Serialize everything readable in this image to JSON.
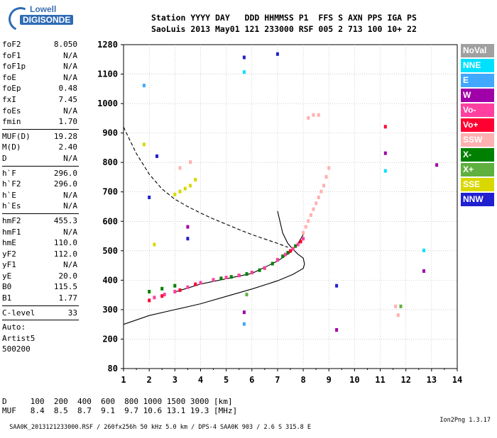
{
  "logo": {
    "line1": "Lowell",
    "line2": "DIGISONDE"
  },
  "header": {
    "line1": "Station YYYY DAY   DDD HHMMSS P1  FFS S AXN PPS IGA PS",
    "line2": "SaoLuis 2013 May01 121 233000 RSF 005 2 713 100 10+ 22"
  },
  "params1": [
    {
      "label": "foF2",
      "value": "8.050"
    },
    {
      "label": "foF1",
      "value": "N/A"
    },
    {
      "label": "foF1p",
      "value": "N/A"
    },
    {
      "label": "foE",
      "value": "N/A"
    },
    {
      "label": "foEp",
      "value": "0.48"
    },
    {
      "label": "fxI",
      "value": "7.45"
    },
    {
      "label": "foEs",
      "value": "N/A"
    },
    {
      "label": "fmin",
      "value": "1.70"
    }
  ],
  "params2": [
    {
      "label": "MUF(D)",
      "value": "19.28"
    },
    {
      "label": "M(D)",
      "value": "2.40"
    },
    {
      "label": "D",
      "value": "N/A"
    }
  ],
  "params3": [
    {
      "label": "h`F",
      "value": "296.0"
    },
    {
      "label": "h`F2",
      "value": "296.0"
    },
    {
      "label": "h`E",
      "value": "N/A"
    },
    {
      "label": "h`Es",
      "value": "N/A"
    }
  ],
  "params4": [
    {
      "label": "hmF2",
      "value": "455.3"
    },
    {
      "label": "hmF1",
      "value": "N/A"
    },
    {
      "label": "hmE",
      "value": "110.0"
    },
    {
      "label": "yF2",
      "value": "112.0"
    },
    {
      "label": "yF1",
      "value": "N/A"
    },
    {
      "label": "yE",
      "value": "20.0"
    },
    {
      "label": "B0",
      "value": "115.5"
    },
    {
      "label": "B1",
      "value": "1.77"
    }
  ],
  "clevel": {
    "label": "C-level",
    "value": "33"
  },
  "auto": {
    "line1": "Auto:",
    "line2": "Artist5",
    "line3": "500200"
  },
  "legend": [
    {
      "label": "NoVal",
      "color": "#a0a0a0"
    },
    {
      "label": "NNE",
      "color": "#00e0ff"
    },
    {
      "label": "E",
      "color": "#40a8ff"
    },
    {
      "label": "W",
      "color": "#a000a8"
    },
    {
      "label": "Vo-",
      "color": "#ff40a0"
    },
    {
      "label": "Vo+",
      "color": "#ff0030"
    },
    {
      "label": "SSW",
      "color": "#ffb0b0"
    },
    {
      "label": "X-",
      "color": "#008000"
    },
    {
      "label": "X+",
      "color": "#60b040"
    },
    {
      "label": "SSE",
      "color": "#d8d800"
    },
    {
      "label": "NNW",
      "color": "#2020d0"
    }
  ],
  "bottom": {
    "d_row": "D     100  200  400  600  800 1000 1500 3000 [km]",
    "muf_row": "MUF   8.4  8.5  8.7  9.1  9.7 10.6 13.1 19.3 [MHz]",
    "footer_left": "SAA0K_2013121233000.RSF / 260fx256h 50 kHz 5.0 km / DPS-4 SAA0K 903 / 2.6 S 315.8 E",
    "footer_right": "Ion2Png 1.3.17"
  },
  "chart_data": {
    "type": "scatter",
    "xlabel": "",
    "ylabel": "",
    "xlim": [
      1,
      14
    ],
    "ylim": [
      80,
      1280
    ],
    "x_ticks": [
      1,
      2,
      3,
      4,
      5,
      6,
      7,
      8,
      9,
      10,
      11,
      12,
      13,
      14
    ],
    "y_ticks": [
      80,
      200,
      300,
      400,
      500,
      600,
      700,
      800,
      900,
      1000,
      1100,
      1280
    ],
    "grid": "dashed",
    "series": [
      {
        "name": "X-",
        "color": "#008000",
        "points": [
          [
            5.8,
            420
          ],
          [
            6.0,
            425
          ],
          [
            6.3,
            433
          ],
          [
            6.5,
            440
          ],
          [
            6.8,
            455
          ],
          [
            7.0,
            468
          ],
          [
            7.2,
            480
          ],
          [
            7.4,
            492
          ],
          [
            7.6,
            505
          ],
          [
            7.7,
            515
          ],
          [
            5.2,
            410
          ],
          [
            5.5,
            415
          ],
          [
            4.8,
            405
          ],
          [
            4.5,
            400
          ],
          [
            2.0,
            360
          ],
          [
            2.5,
            370
          ],
          [
            3.0,
            380
          ]
        ]
      },
      {
        "name": "Vo-",
        "color": "#ff40a0",
        "points": [
          [
            2.2,
            340
          ],
          [
            2.6,
            350
          ],
          [
            3.0,
            360
          ],
          [
            3.5,
            375
          ],
          [
            4.0,
            390
          ],
          [
            4.5,
            400
          ],
          [
            5.0,
            408
          ],
          [
            5.5,
            415
          ],
          [
            6.0,
            425
          ],
          [
            6.5,
            440
          ],
          [
            7.0,
            468
          ],
          [
            7.3,
            486
          ],
          [
            7.6,
            505
          ],
          [
            7.8,
            520
          ],
          [
            8.0,
            540
          ]
        ]
      },
      {
        "name": "Vo+",
        "color": "#ff0030",
        "points": [
          [
            2.0,
            330
          ],
          [
            2.5,
            345
          ],
          [
            3.2,
            365
          ],
          [
            3.8,
            385
          ],
          [
            7.5,
            498
          ],
          [
            7.9,
            530
          ],
          [
            11.2,
            920
          ]
        ]
      },
      {
        "name": "SSW",
        "color": "#ffb0b0",
        "points": [
          [
            8.0,
            560
          ],
          [
            8.1,
            580
          ],
          [
            8.2,
            600
          ],
          [
            8.3,
            620
          ],
          [
            8.4,
            640
          ],
          [
            8.5,
            660
          ],
          [
            8.6,
            680
          ],
          [
            8.7,
            700
          ],
          [
            8.8,
            720
          ],
          [
            8.9,
            750
          ],
          [
            9.0,
            780
          ],
          [
            8.2,
            950
          ],
          [
            8.4,
            960
          ],
          [
            8.6,
            960
          ],
          [
            3.2,
            780
          ],
          [
            3.6,
            800
          ],
          [
            11.6,
            310
          ],
          [
            11.7,
            280
          ]
        ]
      },
      {
        "name": "SSE",
        "color": "#d8d800",
        "points": [
          [
            3.0,
            690
          ],
          [
            3.2,
            700
          ],
          [
            3.4,
            710
          ],
          [
            3.6,
            720
          ],
          [
            3.8,
            740
          ],
          [
            2.2,
            520
          ],
          [
            1.8,
            860
          ]
        ]
      },
      {
        "name": "W",
        "color": "#a000a8",
        "points": [
          [
            3.5,
            580
          ],
          [
            5.7,
            290
          ],
          [
            9.3,
            230
          ],
          [
            12.7,
            430
          ],
          [
            13.2,
            790
          ],
          [
            11.2,
            830
          ]
        ]
      },
      {
        "name": "NNW",
        "color": "#2020d0",
        "points": [
          [
            5.7,
            1200
          ],
          [
            7.0,
            1220
          ],
          [
            9.3,
            380
          ],
          [
            2.0,
            680
          ],
          [
            3.5,
            540
          ],
          [
            2.3,
            820
          ]
        ]
      },
      {
        "name": "NNE",
        "color": "#00e0ff",
        "points": [
          [
            5.7,
            1110
          ],
          [
            12.7,
            500
          ],
          [
            11.2,
            770
          ]
        ]
      },
      {
        "name": "E",
        "color": "#40a8ff",
        "points": [
          [
            1.8,
            1060
          ],
          [
            5.7,
            250
          ]
        ]
      },
      {
        "name": "X+",
        "color": "#60b040",
        "points": [
          [
            11.8,
            310
          ],
          [
            5.8,
            350
          ]
        ]
      }
    ],
    "curves": [
      {
        "style": "dashed",
        "points": [
          [
            1.0,
            920
          ],
          [
            1.5,
            830
          ],
          [
            2.0,
            760
          ],
          [
            2.5,
            710
          ],
          [
            3.0,
            675
          ],
          [
            3.5,
            650
          ],
          [
            4.0,
            628
          ],
          [
            4.5,
            608
          ],
          [
            5.0,
            590
          ],
          [
            5.5,
            572
          ],
          [
            6.0,
            555
          ],
          [
            6.5,
            540
          ],
          [
            7.0,
            525
          ],
          [
            7.4,
            512
          ]
        ]
      },
      {
        "style": "solid",
        "points": [
          [
            7.0,
            635
          ],
          [
            7.2,
            560
          ],
          [
            7.4,
            525
          ],
          [
            7.6,
            505
          ],
          [
            7.8,
            488
          ],
          [
            8.0,
            475
          ],
          [
            8.05,
            455
          ],
          [
            8.0,
            440
          ],
          [
            7.6,
            420
          ],
          [
            7.0,
            398
          ],
          [
            6.0,
            370
          ],
          [
            5.0,
            345
          ],
          [
            4.0,
            320
          ],
          [
            3.0,
            300
          ],
          [
            2.0,
            280
          ],
          [
            1.0,
            250
          ]
        ]
      },
      {
        "style": "solid",
        "points": [
          [
            3.0,
            360
          ],
          [
            4.0,
            387
          ],
          [
            5.0,
            405
          ],
          [
            6.0,
            423
          ],
          [
            7.0,
            465
          ],
          [
            7.5,
            495
          ],
          [
            7.8,
            525
          ],
          [
            8.0,
            555
          ]
        ]
      }
    ]
  }
}
